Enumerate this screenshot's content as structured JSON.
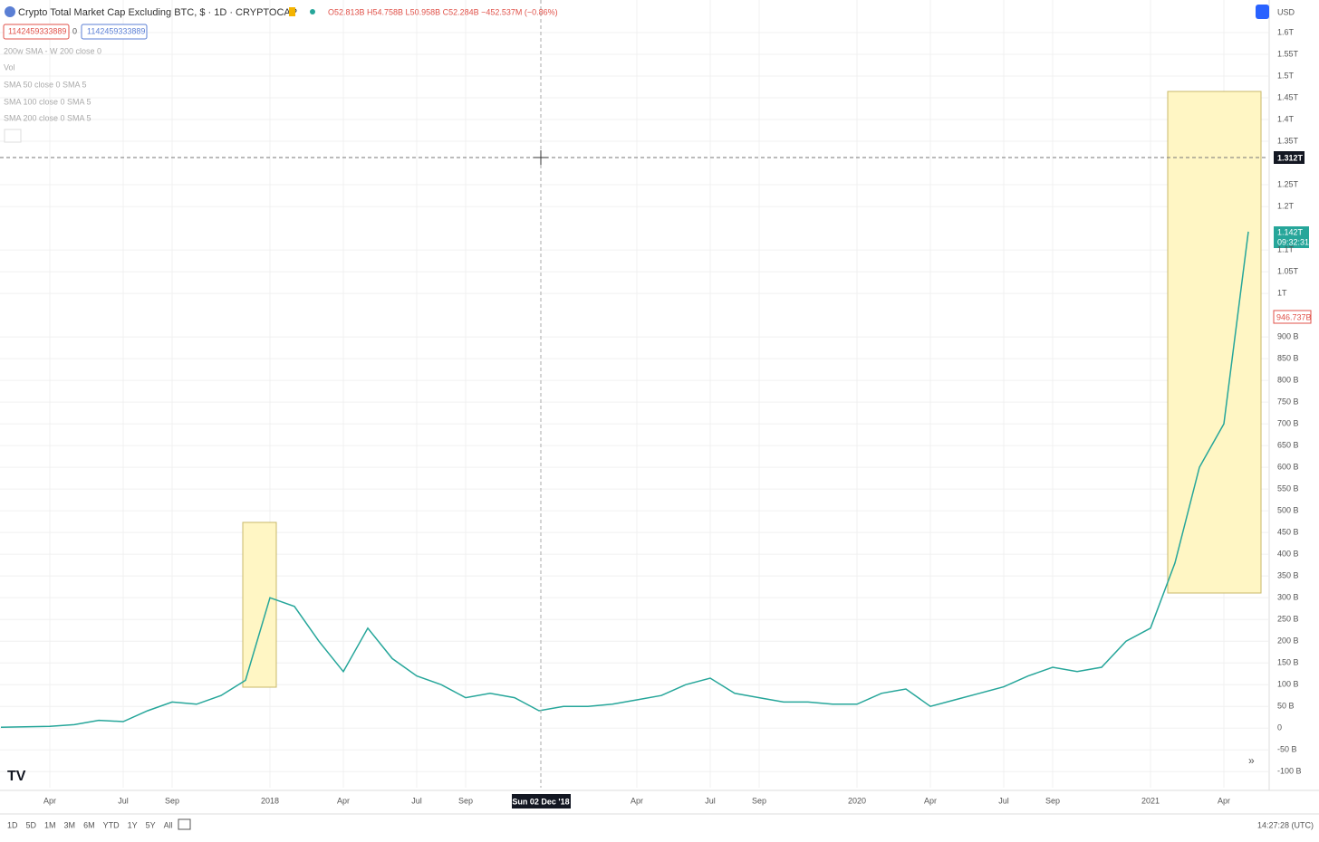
{
  "ui": {
    "title": "Crypto Total Market Cap Excluding BTC, $ · 1D · CRYPTOCAP",
    "ohlc": "O52.813B H54.758B L50.958B C52.284B −452.537M (−0.86%)",
    "inputs": [
      "1142459333889",
      "0",
      "1142459333889"
    ],
    "indicators": [
      "200w SMA - W 200 close 0",
      "Vol",
      "SMA 50 close 0 SMA 5",
      "SMA 100 close 0 SMA 5",
      "SMA 200 close 0 SMA 5"
    ],
    "currency": "USD",
    "crosshair_price": "1.312T",
    "crosshair_date": "Sun 02 Dec '18",
    "last_price": "1.142T",
    "countdown": "09:32:31",
    "marker_price": "946.737B",
    "ranges": [
      "1D",
      "5D",
      "1M",
      "3M",
      "6M",
      "YTD",
      "1Y",
      "5Y",
      "All"
    ],
    "clock": "14:27:28 (UTC)"
  },
  "chart_data": {
    "type": "line",
    "color": "#26a69a",
    "grid": true,
    "categories": [
      null,
      null,
      "Apr",
      null,
      null,
      "Jul",
      null,
      "Sep",
      null,
      null,
      null,
      "2018",
      null,
      null,
      "Apr",
      null,
      null,
      "Jul",
      null,
      "Sep",
      null,
      null,
      null,
      null,
      null,
      null,
      "Apr",
      null,
      null,
      "Jul",
      null,
      "Sep",
      null,
      null,
      null,
      "2020",
      null,
      null,
      "Apr",
      null,
      null,
      "Jul",
      null,
      "Sep",
      null,
      null,
      null,
      "2021",
      null,
      null,
      "Apr",
      null
    ],
    "values": [
      2,
      3,
      4,
      8,
      18,
      15,
      40,
      60,
      55,
      75,
      110,
      300,
      280,
      200,
      130,
      230,
      160,
      120,
      100,
      70,
      80,
      70,
      40,
      50,
      50,
      55,
      65,
      75,
      100,
      115,
      80,
      70,
      60,
      60,
      55,
      55,
      80,
      90,
      50,
      65,
      80,
      95,
      120,
      140,
      130,
      140,
      200,
      230,
      380,
      600,
      700,
      1142
    ],
    "ylim": [
      -137,
      1675
    ],
    "yticks": [
      {
        "value": -100,
        "label": "-100 B"
      },
      {
        "value": -50,
        "label": "-50 B"
      },
      0,
      {
        "value": 50,
        "label": "50 B"
      },
      {
        "value": 100,
        "label": "100 B"
      },
      {
        "value": 150,
        "label": "150 B"
      },
      {
        "value": 200,
        "label": "200 B"
      },
      {
        "value": 250,
        "label": "250 B"
      },
      {
        "value": 300,
        "label": "300 B"
      },
      {
        "value": 350,
        "label": "350 B"
      },
      {
        "value": 400,
        "label": "400 B"
      },
      {
        "value": 450,
        "label": "450 B"
      },
      {
        "value": 500,
        "label": "500 B"
      },
      {
        "value": 550,
        "label": "550 B"
      },
      {
        "value": 600,
        "label": "600 B"
      },
      {
        "value": 650,
        "label": "650 B"
      },
      {
        "value": 700,
        "label": "700 B"
      },
      {
        "value": 750,
        "label": "750 B"
      },
      {
        "value": 800,
        "label": "800 B"
      },
      {
        "value": 850,
        "label": "850 B"
      },
      {
        "value": 900,
        "label": "900 B"
      },
      {
        "value": 1000,
        "label": "1T"
      },
      {
        "value": 1050,
        "label": "1.05T"
      },
      {
        "value": 1100,
        "label": "1.1T"
      },
      {
        "value": 1200,
        "label": "1.2T"
      },
      {
        "value": 1250,
        "label": "1.25T"
      },
      {
        "value": 1350,
        "label": "1.35T"
      },
      {
        "value": 1400,
        "label": "1.4T"
      },
      {
        "value": 1450,
        "label": "1.45T"
      },
      {
        "value": 1500,
        "label": "1.5T"
      },
      {
        "value": 1550,
        "label": "1.55T"
      },
      {
        "value": 1600,
        "label": "1.6T"
      }
    ]
  }
}
